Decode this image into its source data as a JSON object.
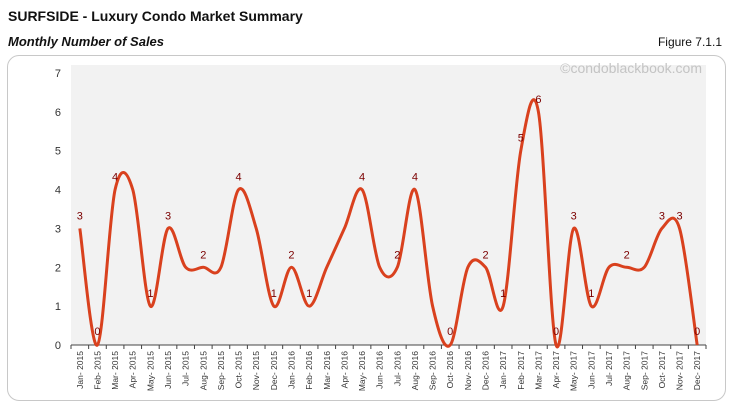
{
  "header": {
    "title": "SURFSIDE - Luxury Condo Market Summary",
    "subtitle": "Monthly Number of Sales",
    "figure": "Figure 7.1.1"
  },
  "watermark": "©condoblackbook.com",
  "colors": {
    "line": "#d9411e",
    "label": "#7b0000",
    "plot_bg": "#f2f2f2"
  },
  "chart_data": {
    "type": "line",
    "smooth": true,
    "ylim": [
      0,
      7
    ],
    "yticks": [
      0,
      1,
      2,
      3,
      4,
      5,
      6,
      7
    ],
    "grid": false,
    "categories": [
      "Jan- 2015",
      "Feb- 2015",
      "Mar- 2015",
      "Apr- 2015",
      "May- 2015",
      "Jun- 2015",
      "Jul- 2015",
      "Aug- 2015",
      "Sep- 2015",
      "Oct- 2015",
      "Nov- 2015",
      "Dec- 2015",
      "Jan- 2016",
      "Feb- 2016",
      "Mar- 2016",
      "Apr- 2016",
      "May- 2016",
      "Jun- 2016",
      "Jul- 2016",
      "Aug- 2016",
      "Sep- 2016",
      "Oct- 2016",
      "Nov- 2016",
      "Dec- 2016",
      "Jan- 2017",
      "Feb- 2017",
      "Mar- 2017",
      "Apr- 2017",
      "May- 2017",
      "Jun- 2017",
      "Jul- 2017",
      "Aug- 2017",
      "Sep- 2017",
      "Oct- 2017",
      "Nov- 2017",
      "Dec- 2017"
    ],
    "values": [
      3,
      0,
      4,
      4,
      1,
      3,
      2,
      2,
      2,
      4,
      3,
      1,
      2,
      1,
      2,
      3,
      4,
      2,
      2,
      4,
      1,
      0,
      2,
      2,
      1,
      5,
      6,
      0,
      3,
      1,
      2,
      2,
      2,
      3,
      3,
      0
    ],
    "data_labels": [
      "3",
      "0",
      "4",
      null,
      "1",
      "3",
      null,
      "2",
      null,
      "4",
      null,
      "1",
      "2",
      "1",
      null,
      null,
      "4",
      null,
      "2",
      "4",
      null,
      "0",
      null,
      "2",
      "1",
      "5",
      "6",
      "0",
      "3",
      "1",
      null,
      "2",
      null,
      "3",
      "3",
      "0"
    ]
  }
}
